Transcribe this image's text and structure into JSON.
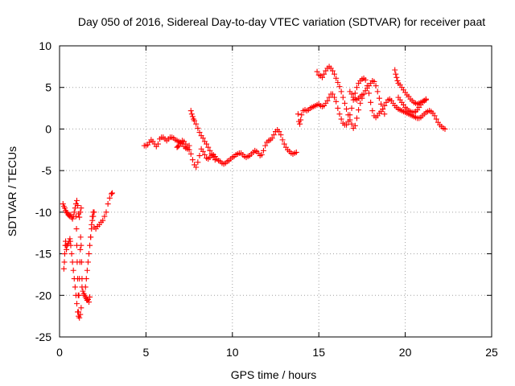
{
  "chart_data": {
    "type": "scatter",
    "title": "Day 050 of 2016, Sidereal Day-to-day VTEC variation (SDTVAR) for receiver paat",
    "xlabel": "GPS time / hours",
    "ylabel": "SDTVAR / TECUs",
    "xlim": [
      0,
      25
    ],
    "ylim": [
      -25,
      10
    ],
    "xticks": [
      0,
      5,
      10,
      15,
      20,
      25
    ],
    "yticks": [
      -25,
      -20,
      -15,
      -10,
      -5,
      0,
      5,
      10
    ],
    "grid": true,
    "marker": "plus",
    "color": "#ff0000",
    "series": [
      {
        "x": [
          0.2,
          0.25,
          0.3,
          0.35,
          0.4,
          0.45,
          0.5,
          0.55,
          0.6,
          0.65,
          0.7,
          0.75,
          0.8,
          0.85,
          0.9,
          0.95,
          1.0,
          1.05,
          1.1,
          1.15,
          1.2,
          1.25,
          1.3,
          1.35,
          1.4,
          1.45,
          1.5,
          1.55,
          1.6,
          1.65,
          1.7,
          1.75,
          1.8,
          1.85,
          1.9,
          1.95,
          2.0,
          2.1,
          2.2,
          2.3,
          2.4,
          2.5,
          2.6,
          2.7,
          2.8,
          2.9,
          3.0,
          3.05
        ],
        "y": [
          -9,
          -9.3,
          -9.5,
          -9.8,
          -10,
          -10.1,
          -10.3,
          -10.4,
          -10.5,
          -10.3,
          -10.6,
          -10.8,
          -10.5,
          -10,
          -9.5,
          -9,
          -8.6,
          -9.2,
          -10.2,
          -10.6,
          -10,
          -9.5,
          -19,
          -19.5,
          -19.8,
          -20,
          -20.2,
          -20.4,
          -20.6,
          -20.5,
          -20.8,
          -20.2,
          -13,
          -11.5,
          -10.5,
          -10,
          -11.8,
          -12,
          -11.7,
          -11.5,
          -11.2,
          -11,
          -10.5,
          -10,
          -9,
          -8.3,
          -7.8,
          -7.7
        ]
      },
      {
        "x": [
          0.25,
          0.28,
          0.3,
          0.33,
          0.35,
          0.38,
          0.4,
          0.45,
          0.5,
          0.55,
          0.6,
          0.62,
          0.65,
          0.7,
          0.75,
          0.8,
          0.85,
          0.9,
          0.95,
          1.0,
          1.05,
          1.1,
          1.15,
          1.2,
          1.25
        ],
        "y": [
          -16.8,
          -16,
          -15,
          -14,
          -13.5,
          -14,
          -14.5,
          -14,
          -13.8,
          -13.5,
          -13.2,
          -13.5,
          -14,
          -15,
          -16,
          -17,
          -18,
          -19,
          -20,
          -21,
          -22,
          -22.5,
          -22.7,
          -22.3,
          -21.5
        ]
      },
      {
        "x": [
          0.95,
          0.98,
          1.0,
          1.02,
          1.05,
          1.08,
          1.1,
          1.12,
          1.15,
          1.18,
          1.2,
          1.22,
          1.25,
          1.28,
          1.3
        ],
        "y": [
          -10.5,
          -12,
          -14,
          -16,
          -18,
          -20,
          -22,
          -20,
          -18,
          -16,
          -14.5,
          -13,
          -14,
          -16,
          -18
        ]
      },
      {
        "x": [
          1.5,
          1.55,
          1.6,
          1.65,
          1.7,
          1.75,
          1.8,
          1.85,
          1.9,
          1.95,
          2.0
        ],
        "y": [
          -19,
          -18,
          -17,
          -16,
          -15,
          -14,
          -13,
          -12,
          -11,
          -10.5,
          -10
        ]
      },
      {
        "x": [
          4.9,
          5.0,
          5.1,
          5.2,
          5.3,
          5.4,
          5.5,
          5.6,
          5.7,
          5.8,
          5.9,
          6.0,
          6.1,
          6.2,
          6.3,
          6.4,
          6.5,
          6.6,
          6.7,
          6.8,
          6.9,
          7.0,
          7.1,
          7.2,
          7.3,
          7.4,
          7.5,
          7.6,
          7.7,
          7.8,
          7.9,
          8.0,
          8.1,
          8.2,
          8.3,
          8.4,
          8.5,
          8.6,
          8.7,
          8.8,
          8.9,
          9.0,
          9.1,
          9.2,
          9.3,
          9.4,
          9.5,
          9.6,
          9.7,
          9.8,
          9.9,
          10.0,
          10.1,
          10.2,
          10.3,
          10.4,
          10.5,
          10.6,
          10.7,
          10.8,
          10.9,
          11.0,
          11.1,
          11.2,
          11.3,
          11.4,
          11.5,
          11.6,
          11.7,
          11.8,
          11.9,
          12.0,
          12.1,
          12.2,
          12.3,
          12.4,
          12.5,
          12.6,
          12.7,
          12.8,
          12.9,
          13.0,
          13.1,
          13.2,
          13.3,
          13.4,
          13.5,
          13.6,
          13.7
        ],
        "y": [
          -2,
          -2,
          -1.9,
          -1.6,
          -1.3,
          -1.5,
          -1.8,
          -2.1,
          -1.8,
          -1.2,
          -1,
          -1,
          -1.2,
          -1.4,
          -1.2,
          -1,
          -1,
          -1.1,
          -1.3,
          -1.4,
          -1.5,
          -1.6,
          -1.8,
          -2.1,
          -2.3,
          -2.4,
          -2.5,
          -3,
          -3.7,
          -4.3,
          -4.6,
          -4,
          -3.2,
          -2.4,
          -2.7,
          -3.1,
          -3.5,
          -3.6,
          -3.4,
          -3.2,
          -3.1,
          -3.3,
          -3.6,
          -3.8,
          -3.9,
          -4.1,
          -4.2,
          -4.1,
          -3.9,
          -3.8,
          -3.6,
          -3.4,
          -3.3,
          -3.1,
          -3,
          -2.9,
          -2.9,
          -3.1,
          -3.3,
          -3.4,
          -3.3,
          -3.2,
          -3,
          -2.8,
          -2.6,
          -2.7,
          -2.9,
          -3.2,
          -3.1,
          -2.6,
          -2,
          -1.6,
          -1.4,
          -1.3,
          -1.1,
          -0.7,
          -0.3,
          -0.1,
          -0.3,
          -0.7,
          -1.3,
          -1.8,
          -2.2,
          -2.5,
          -2.7,
          -2.9,
          -3,
          -2.9,
          -2.8
        ]
      },
      {
        "x": [
          6.8,
          6.85,
          6.9,
          7.0,
          7.1,
          7.2,
          7.3,
          7.4,
          7.5
        ],
        "y": [
          -2.2,
          -2.1,
          -2,
          -1.7,
          -1.4,
          -1.5,
          -1.8,
          -2.2,
          -2
        ]
      },
      {
        "x": [
          7.6,
          7.65,
          7.7,
          7.75,
          7.8,
          7.9,
          8.0,
          8.1,
          8.2,
          8.3,
          8.4,
          8.5,
          8.6,
          8.7,
          8.8,
          8.9,
          9.0
        ],
        "y": [
          2.2,
          1.8,
          1.5,
          1.2,
          1,
          0.6,
          0.1,
          -0.4,
          -0.8,
          -1.1,
          -1.5,
          -1.8,
          -2.2,
          -2.6,
          -3,
          -3.4,
          -3.7
        ]
      },
      {
        "x": [
          13.8,
          13.85,
          13.9,
          13.95,
          14.0,
          14.1,
          14.2,
          14.3,
          14.4,
          14.5,
          14.6,
          14.7,
          14.8,
          14.9,
          15.0,
          15.1,
          15.2,
          15.3,
          15.4,
          15.5,
          15.6,
          15.7,
          15.8,
          15.9,
          16.0,
          16.1,
          16.2,
          16.3,
          16.4,
          16.5,
          16.6,
          16.7,
          16.8,
          16.9,
          17.0,
          17.1,
          17.2,
          17.3,
          17.4,
          17.5,
          17.6,
          17.7,
          17.8,
          17.9,
          18.0,
          18.1,
          18.2,
          18.3,
          18.4,
          18.5,
          18.6,
          18.7,
          18.8,
          18.9,
          19.0,
          19.1,
          19.2,
          19.3,
          19.4,
          19.5,
          19.6,
          19.7,
          19.8,
          19.9,
          20.0,
          20.1,
          20.2,
          20.3,
          20.4,
          20.5,
          20.6,
          20.7,
          20.8,
          20.9,
          21.0,
          21.1,
          21.2,
          21.3,
          21.4,
          21.5,
          21.6,
          21.7,
          21.8,
          21.9,
          22.0,
          22.1,
          22.2,
          22.3
        ],
        "y": [
          1.8,
          0.9,
          0.6,
          1.1,
          1.7,
          2.2,
          2.3,
          2.2,
          2.3,
          2.5,
          2.6,
          2.7,
          2.8,
          2.9,
          3,
          2.8,
          2.7,
          2.8,
          3.1,
          3.4,
          3.8,
          4.2,
          4.2,
          3.8,
          3.3,
          2.5,
          1.8,
          1.2,
          0.7,
          0.5,
          0.5,
          0.9,
          1.7,
          2.5,
          3.5,
          4.3,
          5,
          5.5,
          5.8,
          6,
          6.1,
          5.9,
          5.2,
          4.3,
          3.2,
          2.2,
          1.6,
          1.4,
          1.6,
          1.9,
          2.1,
          2.4,
          2.8,
          3.2,
          3.5,
          3.6,
          3.4,
          3.1,
          2.8,
          2.6,
          2.4,
          2.3,
          2.2,
          2.1,
          2,
          1.9,
          1.8,
          1.7,
          1.6,
          1.5,
          1.4,
          1.3,
          1.3,
          1.4,
          1.6,
          1.8,
          2,
          2.1,
          2.2,
          2.1,
          1.9,
          1.6,
          1.2,
          0.8,
          0.5,
          0.3,
          0.1,
          0
        ]
      },
      {
        "x": [
          14.9,
          15.0,
          15.1,
          15.2,
          15.3,
          15.4,
          15.5,
          15.6,
          15.7,
          15.8,
          15.9,
          16.0,
          16.1,
          16.2,
          16.3,
          16.4,
          16.5,
          16.6,
          16.7,
          16.8,
          16.9,
          17.0,
          17.1,
          17.2,
          17.3,
          17.4,
          17.5,
          17.6,
          17.7,
          17.8,
          17.9,
          18.0,
          18.1,
          18.2,
          18.3,
          18.4,
          18.5,
          18.6,
          18.7,
          18.8
        ],
        "y": [
          6.9,
          6.5,
          6.4,
          6.2,
          6.6,
          7,
          7.3,
          7.5,
          7.3,
          7,
          6.6,
          6.1,
          5.6,
          5.1,
          4.5,
          3.8,
          3.1,
          2.4,
          1.7,
          1.1,
          0.6,
          0.1,
          0.4,
          1.3,
          2.3,
          3.1,
          3.7,
          4.2,
          4.6,
          4.9,
          5.2,
          5.5,
          5.8,
          5.7,
          5.2,
          4.5,
          3.7,
          3,
          2.4,
          1.8
        ]
      },
      {
        "x": [
          16.8,
          16.9,
          17.0,
          17.1,
          17.2,
          17.3,
          17.4,
          17.5
        ],
        "y": [
          4.5,
          4.2,
          3.8,
          3.6,
          3.5,
          3.7,
          3.9,
          4.1
        ]
      },
      {
        "x": [
          19.4,
          19.45,
          19.5,
          19.55,
          19.6,
          19.7,
          19.8,
          19.9,
          20.0,
          20.1,
          20.2,
          20.3,
          20.4,
          20.5,
          20.6,
          20.7,
          20.8,
          20.9,
          21.0,
          21.1,
          21.2
        ],
        "y": [
          7.1,
          6.6,
          6.2,
          5.8,
          5.5,
          5.3,
          5,
          4.7,
          4.4,
          4.1,
          3.9,
          3.6,
          3.4,
          3.2,
          3.1,
          3,
          3.1,
          3.2,
          3.3,
          3.4,
          3.5
        ]
      },
      {
        "x": [
          19.6,
          19.7,
          19.8,
          19.9,
          20.0,
          20.1,
          20.2,
          20.3,
          20.4,
          20.5,
          20.6,
          20.7,
          20.8,
          20.9,
          21.0,
          21.1,
          21.2
        ],
        "y": [
          3.8,
          3.5,
          3.2,
          2.9,
          2.6,
          2.4,
          2.2,
          2.1,
          2,
          2,
          2.1,
          2.3,
          2.6,
          2.9,
          3.2,
          3.4,
          3.6
        ]
      }
    ]
  }
}
